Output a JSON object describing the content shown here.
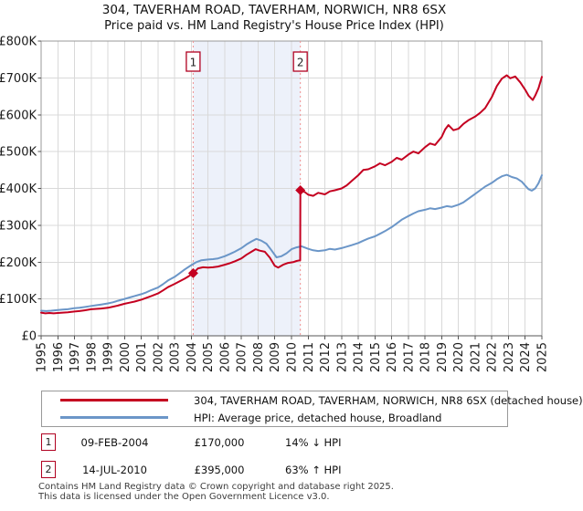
{
  "title": "304, TAVERHAM ROAD, TAVERHAM, NORWICH, NR8 6SX",
  "subtitle": "Price paid vs. HM Land Registry's House Price Index (HPI)",
  "chart_data": {
    "type": "line",
    "title": "304, TAVERHAM ROAD, TAVERHAM, NORWICH, NR8 6SX",
    "subtitle": "Price paid vs. HM Land Registry's House Price Index (HPI)",
    "grid": true,
    "x_axis": {
      "start": 1995,
      "end": 2025,
      "tick_labels": [
        "1995",
        "1996",
        "1997",
        "1998",
        "1999",
        "2000",
        "2001",
        "2002",
        "2003",
        "2004",
        "2005",
        "2006",
        "2007",
        "2008",
        "2009",
        "2010",
        "2011",
        "2012",
        "2013",
        "2014",
        "2015",
        "2016",
        "2017",
        "2018",
        "2019",
        "2020",
        "2021",
        "2022",
        "2023",
        "2024",
        "2025"
      ]
    },
    "y_axis": {
      "min_k": 0,
      "max_k": 800,
      "tick_values_k": [
        0,
        100,
        200,
        300,
        400,
        500,
        600,
        700,
        800
      ],
      "tick_labels": [
        "£0",
        "£100K",
        "£200K",
        "£300K",
        "£400K",
        "£500K",
        "£600K",
        "£700K",
        "£800K"
      ]
    },
    "shaded_region": {
      "from": 2004.11,
      "to": 2010.53,
      "color": "#edf1fa"
    },
    "dashed_line_color": "#f09090",
    "grid_color": "#d9d9d9",
    "border_color": "#999999",
    "axis_color": "#555555",
    "series": [
      {
        "name": "304, TAVERHAM ROAD, TAVERHAM, NORWICH, NR8 6SX (detached house)",
        "color": "#c40020",
        "points": [
          [
            1995,
            63
          ],
          [
            1995.25,
            61
          ],
          [
            1995.5,
            62
          ],
          [
            1995.75,
            61
          ],
          [
            1996,
            62
          ],
          [
            1996.3,
            63
          ],
          [
            1996.6,
            64
          ],
          [
            1997,
            66
          ],
          [
            1997.3,
            67
          ],
          [
            1997.6,
            69
          ],
          [
            1998,
            72
          ],
          [
            1998.3,
            73
          ],
          [
            1998.6,
            74
          ],
          [
            1999,
            76
          ],
          [
            1999.3,
            79
          ],
          [
            1999.6,
            82
          ],
          [
            2000,
            87
          ],
          [
            2000.3,
            90
          ],
          [
            2000.6,
            93
          ],
          [
            2001,
            98
          ],
          [
            2001.3,
            103
          ],
          [
            2001.6,
            108
          ],
          [
            2002,
            115
          ],
          [
            2002.3,
            123
          ],
          [
            2002.6,
            132
          ],
          [
            2003,
            141
          ],
          [
            2003.3,
            148
          ],
          [
            2003.6,
            155
          ],
          [
            2003.85,
            162
          ],
          [
            2004.11,
            170
          ],
          [
            2004.4,
            183
          ],
          [
            2004.7,
            186
          ],
          [
            2005,
            185
          ],
          [
            2005.3,
            186
          ],
          [
            2005.6,
            188
          ],
          [
            2006,
            193
          ],
          [
            2006.3,
            197
          ],
          [
            2006.6,
            202
          ],
          [
            2007,
            210
          ],
          [
            2007.3,
            220
          ],
          [
            2007.6,
            228
          ],
          [
            2007.85,
            235
          ],
          [
            2008.1,
            231
          ],
          [
            2008.4,
            228
          ],
          [
            2008.7,
            212
          ],
          [
            2009,
            190
          ],
          [
            2009.2,
            185
          ],
          [
            2009.5,
            193
          ],
          [
            2009.8,
            198
          ],
          [
            2010.1,
            200
          ],
          [
            2010.3,
            203
          ],
          [
            2010.52,
            205
          ],
          [
            2010.53,
            395
          ],
          [
            2010.8,
            390
          ],
          [
            2011,
            383
          ],
          [
            2011.3,
            380
          ],
          [
            2011.6,
            388
          ],
          [
            2012,
            384
          ],
          [
            2012.3,
            392
          ],
          [
            2012.6,
            395
          ],
          [
            2013,
            400
          ],
          [
            2013.3,
            408
          ],
          [
            2013.6,
            420
          ],
          [
            2014,
            436
          ],
          [
            2014.3,
            450
          ],
          [
            2014.6,
            452
          ],
          [
            2015,
            460
          ],
          [
            2015.3,
            468
          ],
          [
            2015.6,
            463
          ],
          [
            2016,
            472
          ],
          [
            2016.3,
            483
          ],
          [
            2016.6,
            478
          ],
          [
            2017,
            492
          ],
          [
            2017.3,
            500
          ],
          [
            2017.6,
            495
          ],
          [
            2018,
            512
          ],
          [
            2018.3,
            522
          ],
          [
            2018.6,
            518
          ],
          [
            2019,
            540
          ],
          [
            2019.2,
            560
          ],
          [
            2019.4,
            572
          ],
          [
            2019.7,
            558
          ],
          [
            2020,
            562
          ],
          [
            2020.3,
            575
          ],
          [
            2020.6,
            585
          ],
          [
            2021,
            595
          ],
          [
            2021.3,
            605
          ],
          [
            2021.6,
            618
          ],
          [
            2022,
            648
          ],
          [
            2022.3,
            678
          ],
          [
            2022.6,
            698
          ],
          [
            2022.9,
            707
          ],
          [
            2023.1,
            699
          ],
          [
            2023.4,
            704
          ],
          [
            2023.7,
            688
          ],
          [
            2024,
            668
          ],
          [
            2024.2,
            652
          ],
          [
            2024.45,
            640
          ],
          [
            2024.6,
            652
          ],
          [
            2024.8,
            672
          ],
          [
            2025,
            703
          ]
        ]
      },
      {
        "name": "HPI: Average price, detached house, Broadland",
        "color": "#6b96c8",
        "points": [
          [
            1995,
            68
          ],
          [
            1995.3,
            67
          ],
          [
            1995.6,
            68
          ],
          [
            1996,
            70
          ],
          [
            1996.3,
            71
          ],
          [
            1996.6,
            72
          ],
          [
            1997,
            75
          ],
          [
            1997.3,
            76
          ],
          [
            1997.6,
            78
          ],
          [
            1998,
            81
          ],
          [
            1998.3,
            83
          ],
          [
            1998.6,
            85
          ],
          [
            1999,
            88
          ],
          [
            1999.3,
            91
          ],
          [
            1999.6,
            95
          ],
          [
            2000,
            100
          ],
          [
            2000.3,
            104
          ],
          [
            2000.6,
            108
          ],
          [
            2001,
            113
          ],
          [
            2001.3,
            118
          ],
          [
            2001.6,
            124
          ],
          [
            2002,
            131
          ],
          [
            2002.3,
            140
          ],
          [
            2002.6,
            150
          ],
          [
            2003,
            160
          ],
          [
            2003.3,
            170
          ],
          [
            2003.6,
            180
          ],
          [
            2004,
            192
          ],
          [
            2004.3,
            200
          ],
          [
            2004.6,
            205
          ],
          [
            2005,
            207
          ],
          [
            2005.3,
            208
          ],
          [
            2005.6,
            210
          ],
          [
            2006,
            216
          ],
          [
            2006.3,
            222
          ],
          [
            2006.6,
            228
          ],
          [
            2007,
            238
          ],
          [
            2007.3,
            248
          ],
          [
            2007.6,
            256
          ],
          [
            2007.9,
            263
          ],
          [
            2008.2,
            258
          ],
          [
            2008.5,
            250
          ],
          [
            2008.8,
            232
          ],
          [
            2009.1,
            213
          ],
          [
            2009.4,
            216
          ],
          [
            2009.7,
            224
          ],
          [
            2010,
            235
          ],
          [
            2010.3,
            240
          ],
          [
            2010.6,
            243
          ],
          [
            2011,
            236
          ],
          [
            2011.3,
            232
          ],
          [
            2011.6,
            230
          ],
          [
            2012,
            232
          ],
          [
            2012.3,
            236
          ],
          [
            2012.6,
            234
          ],
          [
            2013,
            238
          ],
          [
            2013.3,
            242
          ],
          [
            2013.6,
            246
          ],
          [
            2014,
            252
          ],
          [
            2014.3,
            258
          ],
          [
            2014.6,
            264
          ],
          [
            2015,
            270
          ],
          [
            2015.3,
            277
          ],
          [
            2015.6,
            284
          ],
          [
            2016,
            295
          ],
          [
            2016.3,
            305
          ],
          [
            2016.6,
            315
          ],
          [
            2017,
            325
          ],
          [
            2017.3,
            332
          ],
          [
            2017.6,
            338
          ],
          [
            2018,
            342
          ],
          [
            2018.3,
            346
          ],
          [
            2018.6,
            344
          ],
          [
            2019,
            348
          ],
          [
            2019.3,
            352
          ],
          [
            2019.6,
            350
          ],
          [
            2020,
            356
          ],
          [
            2020.3,
            362
          ],
          [
            2020.6,
            372
          ],
          [
            2021,
            385
          ],
          [
            2021.3,
            395
          ],
          [
            2021.6,
            405
          ],
          [
            2022,
            415
          ],
          [
            2022.3,
            425
          ],
          [
            2022.6,
            433
          ],
          [
            2022.9,
            437
          ],
          [
            2023.2,
            431
          ],
          [
            2023.5,
            427
          ],
          [
            2023.8,
            418
          ],
          [
            2024,
            408
          ],
          [
            2024.2,
            398
          ],
          [
            2024.4,
            394
          ],
          [
            2024.6,
            400
          ],
          [
            2024.8,
            414
          ],
          [
            2025,
            436
          ]
        ]
      }
    ],
    "sales": [
      {
        "num": "1",
        "x": 2004.11,
        "value_k": 170,
        "date": "09-FEB-2004",
        "price": "£170,000",
        "delta": "14% ↓ HPI"
      },
      {
        "num": "2",
        "x": 2010.53,
        "value_k": 395,
        "date": "14-JUL-2010",
        "price": "£395,000",
        "delta": "63% ↑ HPI"
      }
    ]
  },
  "footer": {
    "line1": "Contains HM Land Registry data © Crown copyright and database right 2025.",
    "line2": "This data is licensed under the Open Government Licence v3.0."
  }
}
